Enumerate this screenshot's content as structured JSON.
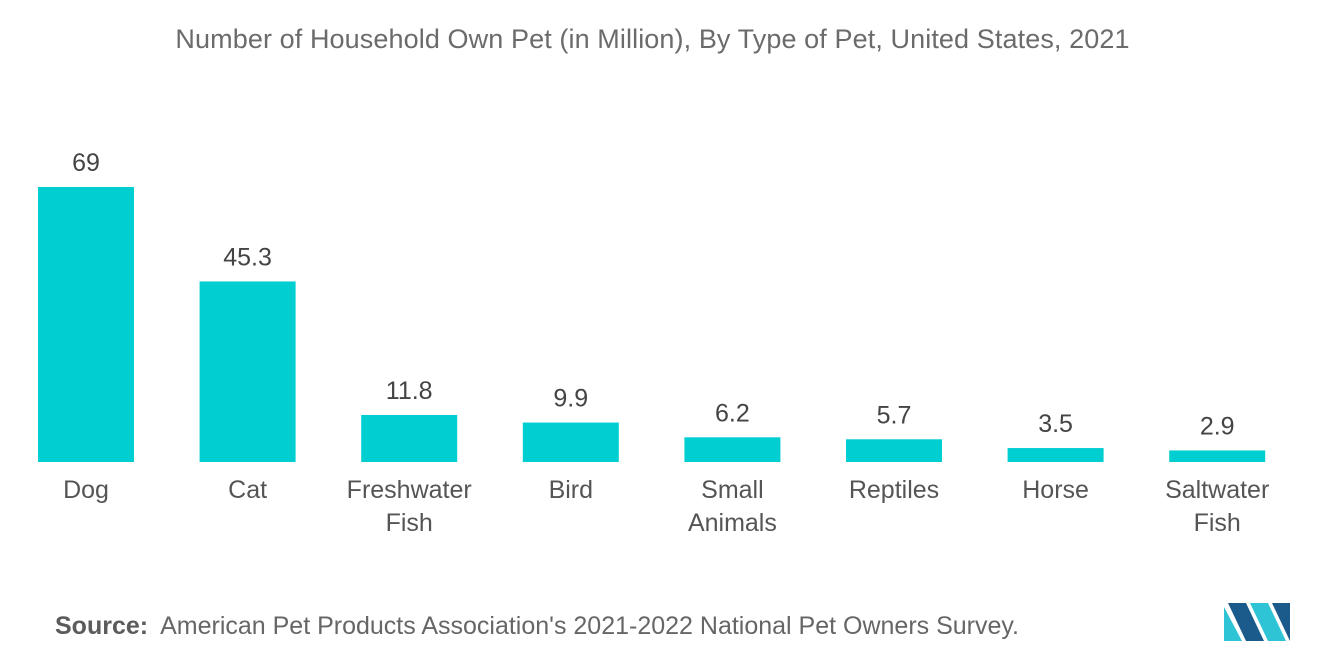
{
  "chart_data": {
    "type": "bar",
    "title": "Number of Household Own Pet (in Million), By Type of Pet, United States, 2021",
    "categories": [
      "Dog",
      "Cat",
      "Freshwater Fish",
      "Bird",
      "Small Animals",
      "Reptiles",
      "Horse",
      "Saltwater Fish"
    ],
    "category_lines": [
      [
        "Dog"
      ],
      [
        "Cat"
      ],
      [
        "Freshwater",
        "Fish"
      ],
      [
        "Bird"
      ],
      [
        "Small",
        "Animals"
      ],
      [
        "Reptiles"
      ],
      [
        "Horse"
      ],
      [
        "Saltwater",
        "Fish"
      ]
    ],
    "values": [
      69,
      45.3,
      11.8,
      9.9,
      6.2,
      5.7,
      3.5,
      2.9
    ],
    "value_labels": [
      "69",
      "45.3",
      "11.8",
      "9.9",
      "6.2",
      "5.7",
      "3.5",
      "2.9"
    ],
    "xlabel": "",
    "ylabel": "",
    "ylim": [
      0,
      69
    ],
    "grid": false,
    "legend": "none",
    "bar_color": "#00CED1"
  },
  "footer": {
    "source_label": "Source:",
    "source_text": "American Pet Products Association's 2021-2022 National Pet Owners Survey."
  },
  "colors": {
    "bar": "#00CED1",
    "logo_dark": "#1a5b8c",
    "logo_light": "#2ec4d6"
  },
  "logo_icon": "mordor-intelligence-logo-icon"
}
